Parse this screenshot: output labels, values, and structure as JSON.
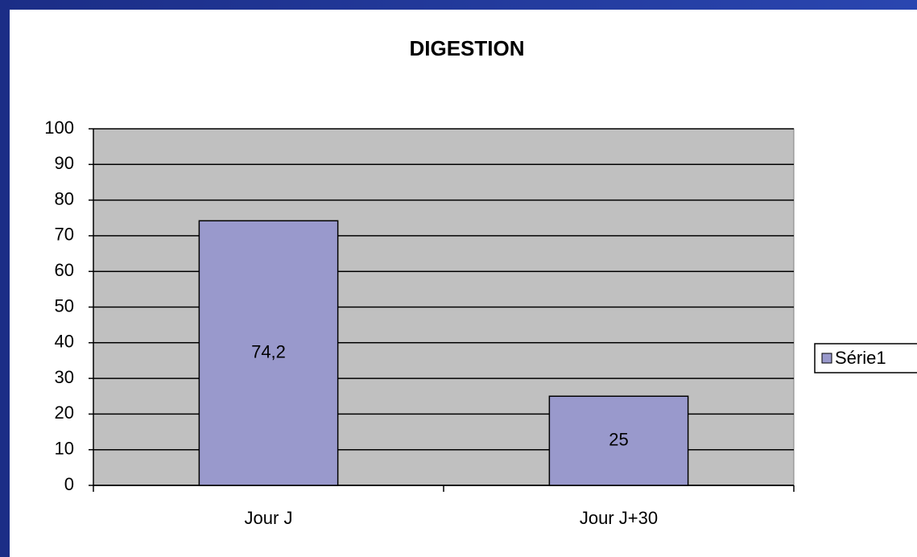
{
  "chart_data": {
    "type": "bar",
    "title": "DIGESTION",
    "categories": [
      "Jour J",
      "Jour J+30"
    ],
    "series": [
      {
        "name": "Série1",
        "color": "#9999cc",
        "values": [
          74.2,
          25
        ],
        "value_labels": [
          "74,2",
          "25"
        ]
      }
    ],
    "ylim": [
      0,
      100
    ],
    "yticks": [
      0,
      10,
      20,
      30,
      40,
      50,
      60,
      70,
      80,
      90,
      100
    ],
    "grid": true,
    "plot_background": "#c0c0c0",
    "legend": "right"
  }
}
